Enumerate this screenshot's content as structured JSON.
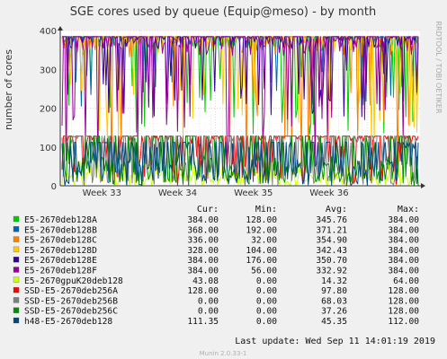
{
  "chart_data": {
    "type": "line",
    "title": "SGE cores used by queue (Equip@meso) - by month",
    "ylabel": "number of cores",
    "watermark": "RRDTOOL / TOBI OETIKER",
    "ylim": [
      0,
      400
    ],
    "yticks": [
      0,
      100,
      200,
      300,
      400
    ],
    "xticks": [
      "Week 33",
      "Week 34",
      "Week 35",
      "Week 36"
    ],
    "legend_headers": [
      "Cur:",
      "Min:",
      "Avg:",
      "Max:"
    ],
    "series": [
      {
        "name": "E5-2670deb128A",
        "color": "#00cc00",
        "cur": "384.00",
        "min": "128.00",
        "avg": "345.76",
        "max": "384.00"
      },
      {
        "name": "E5-2670deb128B",
        "color": "#0066b3",
        "cur": "368.00",
        "min": "192.00",
        "avg": "371.21",
        "max": "384.00"
      },
      {
        "name": "E5-2670deb128C",
        "color": "#ff8000",
        "cur": "336.00",
        "min": "32.00",
        "avg": "354.90",
        "max": "384.00"
      },
      {
        "name": "E5-2670deb128D",
        "color": "#ffcc00",
        "cur": "328.00",
        "min": "104.00",
        "avg": "342.43",
        "max": "384.00"
      },
      {
        "name": "E5-2670deb128E",
        "color": "#330099",
        "cur": "384.00",
        "min": "176.00",
        "avg": "350.70",
        "max": "384.00"
      },
      {
        "name": "E5-2670deb128F",
        "color": "#990099",
        "cur": "384.00",
        "min": "56.00",
        "avg": "332.92",
        "max": "384.00"
      },
      {
        "name": "E5-2670gpuK20deb128",
        "color": "#ccff00",
        "cur": "43.08",
        "min": "0.00",
        "avg": "14.32",
        "max": "64.00"
      },
      {
        "name": "SSD-E5-2670deb256A",
        "color": "#ff0000",
        "cur": "128.00",
        "min": "0.00",
        "avg": "97.80",
        "max": "128.00"
      },
      {
        "name": "SSD-E5-2670deb256B",
        "color": "#808080",
        "cur": "0.00",
        "min": "0.00",
        "avg": "68.03",
        "max": "128.00"
      },
      {
        "name": "SSD-E5-2670deb256C",
        "color": "#008f00",
        "cur": "0.00",
        "min": "0.00",
        "avg": "37.26",
        "max": "128.00"
      },
      {
        "name": "h48-E5-2670deb128",
        "color": "#00487d",
        "cur": "111.35",
        "min": "0.00",
        "avg": "45.35",
        "max": "112.00"
      }
    ],
    "last_update": "Last update: Wed Sep 11 14:01:19 2019",
    "footer": "Munin 2.0.33-1"
  }
}
